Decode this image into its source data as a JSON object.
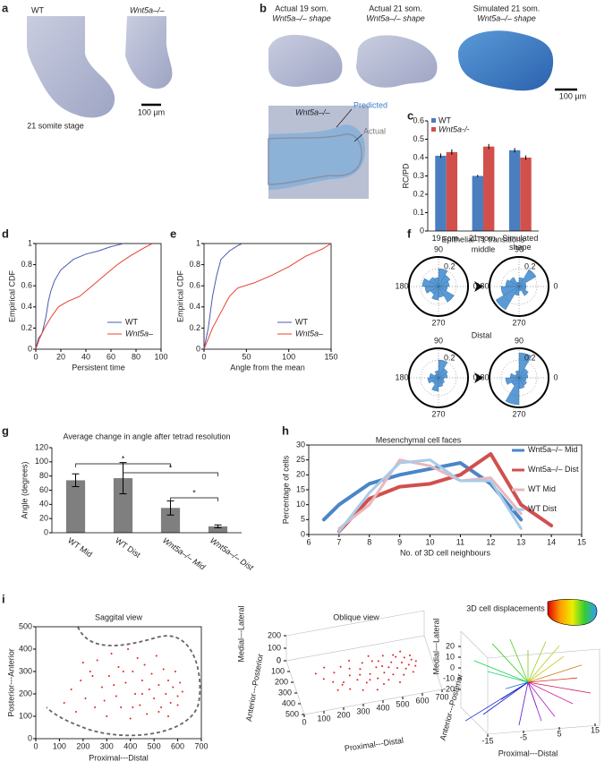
{
  "figure": {
    "a": {
      "left_label": "WT",
      "right_label": "Wnt5a–/–",
      "scale_bar": "100 µm",
      "caption": "21 somite stage"
    },
    "b": {
      "shapes": [
        {
          "title": "Actual 19 som.",
          "subtitle": "Wnt5a–/– shape"
        },
        {
          "title": "Actual 21 som.",
          "subtitle": "Wnt5a–/– shape"
        },
        {
          "title": "Simulated 21 som.",
          "subtitle": "Wnt5a–/– shape"
        }
      ],
      "scale_bar": "100 µm",
      "overlay_label": "Wnt5a–/–",
      "predicted": "Predicted",
      "actual": "Actual"
    },
    "panel_labels": [
      "a",
      "b",
      "c",
      "d",
      "e",
      "f",
      "g",
      "h",
      "i"
    ]
  },
  "chart_data": [
    {
      "type": "bar",
      "ylabel": "RC/PD",
      "categories": [
        "19 som.",
        "21 som.",
        "Simulated shape"
      ],
      "series": [
        {
          "name": "WT",
          "color": "#4a7ebf",
          "values": [
            0.41,
            0.3,
            0.44
          ],
          "errors": [
            0.012,
            0.006,
            0.012
          ]
        },
        {
          "name": "Wnt5a-/-",
          "color": "#d2504b",
          "values": [
            0.43,
            0.46,
            0.4
          ],
          "errors": [
            0.015,
            0.014,
            0.012
          ]
        }
      ],
      "ylim": [
        0,
        0.6
      ],
      "yticks": [
        0,
        0.1,
        0.2,
        0.3,
        0.4,
        0.5,
        0.6
      ],
      "legend": "upper left"
    },
    {
      "type": "ecdf",
      "xlabel": "Persistent time",
      "ylabel": "Empirical CDF",
      "series": [
        {
          "name": "WT",
          "color": "#4a5bb5",
          "x": [
            0,
            2,
            5,
            8,
            10,
            12,
            15,
            20,
            25,
            30,
            40,
            50,
            55,
            60,
            70
          ],
          "values": [
            0,
            0.1,
            0.15,
            0.3,
            0.45,
            0.55,
            0.65,
            0.75,
            0.8,
            0.85,
            0.9,
            0.93,
            0.95,
            0.97,
            1
          ]
        },
        {
          "name": "Wnt5a–",
          "color": "#e8402f",
          "x": [
            0,
            3,
            7,
            12,
            18,
            25,
            35,
            45,
            55,
            65,
            75,
            85,
            93
          ],
          "values": [
            0,
            0.1,
            0.2,
            0.3,
            0.4,
            0.45,
            0.5,
            0.6,
            0.7,
            0.8,
            0.88,
            0.95,
            1
          ]
        }
      ],
      "xlim": [
        0,
        100
      ],
      "xticks": [
        0,
        20,
        40,
        60,
        80,
        100
      ],
      "ylim": [
        0,
        1
      ],
      "yticks": [
        0,
        0.2,
        0.4,
        0.6,
        0.8,
        1
      ],
      "legend": "lower right"
    },
    {
      "type": "ecdf",
      "xlabel": "Angle from the mean",
      "ylabel": "Empirical CDF",
      "series": [
        {
          "name": "WT",
          "color": "#4a5bb5",
          "x": [
            0,
            5,
            10,
            15,
            20,
            30,
            40,
            45
          ],
          "values": [
            0,
            0.2,
            0.5,
            0.7,
            0.85,
            0.93,
            0.98,
            1
          ]
        },
        {
          "name": "Wnt5a–",
          "color": "#e8402f",
          "x": [
            0,
            5,
            10,
            20,
            30,
            40,
            60,
            80,
            100,
            120,
            140,
            150
          ],
          "values": [
            0,
            0.1,
            0.2,
            0.35,
            0.5,
            0.58,
            0.63,
            0.7,
            0.78,
            0.88,
            0.95,
            1
          ]
        }
      ],
      "xlim": [
        0,
        150
      ],
      "xticks": [
        0,
        50,
        100,
        150
      ],
      "ylim": [
        0,
        1
      ],
      "yticks": [
        0,
        0.2,
        0.4,
        0.6,
        0.8,
        1
      ],
      "legend": "lower right"
    },
    {
      "type": "polar",
      "title": "Epithelial T1 transitions",
      "subtitles": [
        "middle",
        "Distal"
      ],
      "color": "#5b9bd5",
      "rlim": [
        0,
        0.33
      ],
      "rticks": [
        0.2
      ],
      "thetaticks": [
        90,
        180,
        270,
        0
      ],
      "roses": [
        [
          0.12,
          0.15,
          0.2,
          0.1,
          0.12,
          0.18,
          0.15,
          0.1,
          0.15,
          0.12,
          0.2,
          0.1
        ],
        [
          0.08,
          0.22,
          0.1,
          0.05,
          0.12,
          0.15,
          0.2,
          0.3,
          0.1,
          0.05,
          0.12,
          0.08
        ],
        [
          0.1,
          0.12,
          0.2,
          0.08,
          0.05,
          0.1,
          0.12,
          0.08,
          0.15,
          0.1,
          0.08,
          0.06
        ],
        [
          0.1,
          0.12,
          0.28,
          0.08,
          0.05,
          0.1,
          0.15,
          0.1,
          0.3,
          0.12,
          0.1,
          0.08
        ]
      ]
    },
    {
      "type": "errbar",
      "title": "Average change in angle after tetrad resolution",
      "ylabel": "Angle (degrees)",
      "categories": [
        "WT Mid",
        "WT Dist",
        "Wnt5a–/– Mid",
        "Wnt5a–/– Dist"
      ],
      "values": [
        74,
        77,
        35,
        9
      ],
      "errors": [
        9,
        22,
        10,
        2
      ],
      "color": "#7f7f7f",
      "ylim": [
        0,
        120
      ],
      "yticks": [
        0,
        20,
        40,
        60,
        80,
        100,
        120
      ],
      "annotations": [
        "*",
        "*",
        "*"
      ]
    },
    {
      "type": "line",
      "title": "Mesenchymal cell faces",
      "xlabel": "No. of 3D cell neighbours",
      "ylabel": "Percentage of cells",
      "series": [
        {
          "name": "Wnt5a–/– Mid",
          "color": "#4a86c8",
          "x": [
            6.5,
            7,
            8,
            9,
            10,
            11,
            12,
            13
          ],
          "values": [
            5,
            10,
            17,
            20,
            22,
            24,
            17,
            5
          ]
        },
        {
          "name": "Wnt5a–/– Dist",
          "color": "#d0504f",
          "x": [
            7,
            8,
            9,
            10,
            11,
            12,
            13,
            14
          ],
          "values": [
            1,
            12,
            16,
            17,
            20,
            27,
            10,
            3
          ]
        },
        {
          "name": "WT Mid",
          "color": "#e8b7bd",
          "x": [
            7,
            8,
            9,
            10,
            11,
            12,
            13
          ],
          "values": [
            2,
            10,
            25,
            23,
            18,
            19,
            7
          ]
        },
        {
          "name": "WT Dist",
          "color": "#a9cbe8",
          "x": [
            7,
            8,
            9,
            10,
            11,
            12,
            13
          ],
          "values": [
            1,
            14,
            24,
            25,
            18,
            18,
            2
          ]
        }
      ],
      "xlim": [
        6,
        15
      ],
      "xticks": [
        6,
        7,
        8,
        9,
        10,
        11,
        12,
        13,
        14,
        15
      ],
      "ylim": [
        0,
        30
      ],
      "yticks": [
        0,
        5,
        10,
        15,
        20,
        25,
        30
      ],
      "legend": "upper right"
    },
    {
      "type": "scatter",
      "title": "Saggital view",
      "xlabel": "Proximal---Distal",
      "ylabel": "Posterior---Anterior",
      "color": "#e0201b",
      "x": [
        120,
        150,
        170,
        190,
        210,
        230,
        250,
        260,
        280,
        300,
        310,
        320,
        340,
        350,
        360,
        380,
        390,
        400,
        410,
        420,
        430,
        440,
        450,
        460,
        470,
        480,
        490,
        500,
        510,
        520,
        530,
        540,
        550,
        560,
        570,
        580,
        590,
        600,
        610,
        620,
        200,
        240,
        290,
        330,
        370,
        410,
        450,
        520,
        560,
        600
      ],
      "values": [
        160,
        220,
        120,
        260,
        180,
        300,
        140,
        350,
        230,
        100,
        280,
        380,
        190,
        320,
        140,
        250,
        400,
        90,
        300,
        200,
        360,
        150,
        260,
        330,
        110,
        220,
        290,
        180,
        370,
        240,
        140,
        310,
        200,
        260,
        160,
        230,
        300,
        190,
        250,
        210,
        340,
        280,
        170,
        240,
        300,
        140,
        200,
        120,
        100,
        150
      ],
      "xlim": [
        0,
        700
      ],
      "xticks": [
        0,
        100,
        200,
        300,
        400,
        500,
        600,
        700
      ],
      "ylim": [
        0,
        500
      ],
      "yticks": [
        0,
        100,
        200,
        300,
        400,
        500
      ]
    },
    {
      "type": "scatter3d",
      "title": "Oblique view",
      "xlabel": "Proximal---Distal",
      "ylabel": "Anterior---Posterior",
      "zlabel": "Medial---Lateral",
      "xticks": [
        0,
        100,
        200,
        300,
        400,
        500,
        600,
        700
      ],
      "yticks": [
        0,
        100,
        200,
        300,
        400,
        500
      ],
      "zticks": [
        0,
        100,
        200
      ]
    },
    {
      "type": "vectors3d",
      "title": "3D cell displacements",
      "xlabel": "Proximal---Distal",
      "ylabel": "Anterior---Posterior",
      "zlabel": "Medial---Lateral",
      "xticks": [
        -15,
        -5,
        5,
        15
      ],
      "zticks": [
        -20,
        -10,
        0,
        10,
        20
      ],
      "dx": [
        -14,
        -12,
        -10,
        -8,
        -6,
        -4,
        -2,
        0,
        2,
        4,
        6,
        8,
        10,
        12,
        14,
        -9,
        -5,
        3,
        7,
        11
      ],
      "dz": [
        -18,
        10,
        -15,
        18,
        -8,
        20,
        -20,
        15,
        -12,
        19,
        -16,
        12,
        -10,
        8,
        -5,
        5,
        -3,
        -18,
        17,
        2
      ]
    }
  ]
}
